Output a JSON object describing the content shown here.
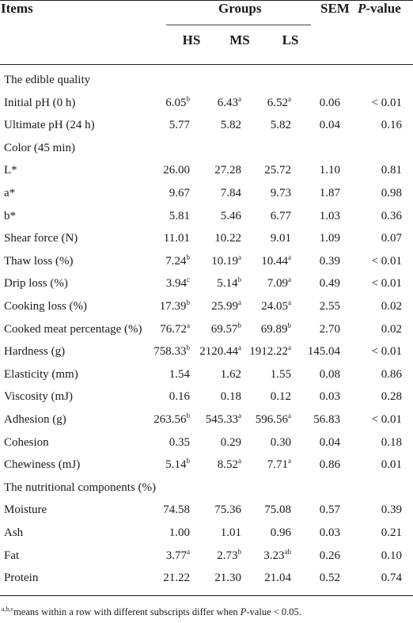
{
  "header": {
    "items": "Items",
    "groups": "Groups",
    "sem": "SEM",
    "p_prefix": "P",
    "p_suffix": "-value",
    "subgroups": [
      "HS",
      "MS",
      "LS"
    ]
  },
  "rows": [
    {
      "item": "The edible quality",
      "section": true
    },
    {
      "item": "Initial pH (0 h)",
      "hs": "6.05",
      "hs_sup": "b",
      "ms": "6.43",
      "ms_sup": "a",
      "ls": "6.52",
      "ls_sup": "a",
      "sem": "0.06",
      "p": "< 0.01"
    },
    {
      "item": "Ultimate pH (24 h)",
      "hs": "5.77",
      "ms": "5.82",
      "ls": "5.82",
      "sem": "0.04",
      "p": "0.16"
    },
    {
      "item": "Color (45 min)",
      "section": true
    },
    {
      "item": "L*",
      "hs": "26.00",
      "ms": "27.28",
      "ls": "25.72",
      "sem": "1.10",
      "p": "0.81"
    },
    {
      "item": "a*",
      "hs": "9.67",
      "ms": "7.84",
      "ls": "9.73",
      "sem": "1.87",
      "p": "0.98"
    },
    {
      "item": "b*",
      "hs": "5.81",
      "ms": "5.46",
      "ls": "6.77",
      "sem": "1.03",
      "p": "0.36"
    },
    {
      "item": "Shear force (N)",
      "hs": "11.01",
      "ms": "10.22",
      "ls": "9.01",
      "sem": "1.09",
      "p": "0.07"
    },
    {
      "item": "Thaw loss (%)",
      "hs": "7.24",
      "hs_sup": "b",
      "ms": "10.19",
      "ms_sup": "a",
      "ls": "10.44",
      "ls_sup": "a",
      "sem": "0.39",
      "p": "< 0.01"
    },
    {
      "item": "Drip loss (%)",
      "hs": "3.94",
      "hs_sup": "c",
      "ms": "5.14",
      "ms_sup": "b",
      "ls": "7.09",
      "ls_sup": "a",
      "sem": "0.49",
      "p": "< 0.01"
    },
    {
      "item": "Cooking loss (%)",
      "hs": "17.39",
      "hs_sup": "b",
      "ms": "25.99",
      "ms_sup": "a",
      "ls": "24.05",
      "ls_sup": "a",
      "sem": "2.55",
      "p": "0.02"
    },
    {
      "item": "Cooked meat percentage (%)",
      "hs": "76.72",
      "hs_sup": "a",
      "ms": "69.57",
      "ms_sup": "b",
      "ls": "69.89",
      "ls_sup": "b",
      "sem": "2.70",
      "p": "0.02"
    },
    {
      "item": "Hardness (g)",
      "hs": "758.33",
      "hs_sup": "b",
      "ms": "2120.44",
      "ms_sup": "a",
      "ls": "1912.22",
      "ls_sup": "a",
      "sem": "145.04",
      "p": "< 0.01"
    },
    {
      "item": "Elasticity (mm)",
      "hs": "1.54",
      "ms": "1.62",
      "ls": "1.55",
      "sem": "0.08",
      "p": "0.86"
    },
    {
      "item": "Viscosity (mJ)",
      "hs": "0.16",
      "ms": "0.18",
      "ls": "0.12",
      "sem": "0.03",
      "p": "0.28"
    },
    {
      "item": "Adhesion (g)",
      "hs": "263.56",
      "hs_sup": "b",
      "ms": "545.33",
      "ms_sup": "a",
      "ls": "596.56",
      "ls_sup": "a",
      "sem": "56.83",
      "p": "< 0.01"
    },
    {
      "item": "Cohesion",
      "hs": "0.35",
      "ms": "0.29",
      "ls": "0.30",
      "sem": "0.04",
      "p": "0.18"
    },
    {
      "item": "Chewiness (mJ)",
      "hs": "5.14",
      "hs_sup": "b",
      "ms": "8.52",
      "ms_sup": "a",
      "ls": "7.71",
      "ls_sup": "a",
      "sem": "0.86",
      "p": "0.01"
    },
    {
      "item": "The nutritional components (%)",
      "section": true
    },
    {
      "item": "Moisture",
      "hs": "74.58",
      "ms": "75.36",
      "ls": "75.08",
      "sem": "0.57",
      "p": "0.39"
    },
    {
      "item": "Ash",
      "hs": "1.00",
      "ms": "1.01",
      "ls": "0.96",
      "sem": "0.03",
      "p": "0.21"
    },
    {
      "item": "Fat",
      "hs": "3.77",
      "hs_sup": "a",
      "ms": "2.73",
      "ms_sup": "b",
      "ls": "3.23",
      "ls_sup": "ab",
      "sem": "0.26",
      "p": "0.10"
    },
    {
      "item": "Protein",
      "hs": "21.22",
      "ms": "21.30",
      "ls": "21.04",
      "sem": "0.52",
      "p": "0.74"
    }
  ],
  "footnote": {
    "sup": "a,b,c",
    "text_before": "means within a row with different subscripts differ when ",
    "p_italic": "P",
    "text_after": "-value < 0.05."
  }
}
